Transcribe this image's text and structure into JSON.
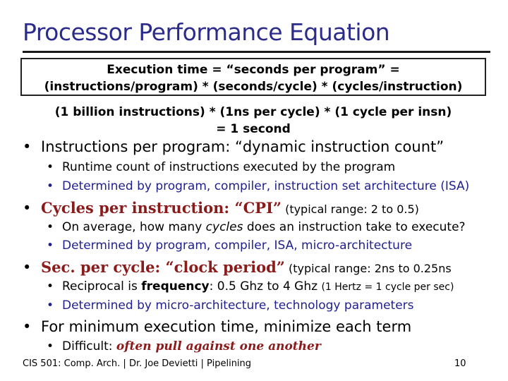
{
  "title": "Processor Performance Equation",
  "equation": {
    "line1": "Execution time = “seconds per program” =",
    "line2": "(instructions/program) * (seconds/cycle) * (cycles/instruction)"
  },
  "example": {
    "line1": "(1 billion instructions) * (1ns per cycle) * (1 cycle per insn)",
    "line2": "= 1 second"
  },
  "bullets": {
    "b1": {
      "text": "Instructions per program: “dynamic instruction count”",
      "sub1": "Runtime count of instructions executed by the program",
      "sub2": "Determined by program, compiler, instruction set architecture (ISA)"
    },
    "b2": {
      "main": "Cycles per instruction: “CPI”",
      "note": " (typical range: 2 to 0.5)",
      "sub1_pre": "On average, how many ",
      "sub1_em": "cycles",
      "sub1_post": " does an instruction take to execute?",
      "sub2": "Determined by program, compiler, ISA, micro-architecture"
    },
    "b3": {
      "main": "Sec. per cycle: “clock period”",
      "note": " (typical range: 2ns to 0.25ns",
      "sub1_pre": "Reciprocal is ",
      "sub1_bold": "frequency",
      "sub1_post": ": 0.5 Ghz to 4 Ghz ",
      "sub1_small": "(1 Hertz = 1 cycle per sec)",
      "sub2": "Determined by micro-architecture, technology parameters"
    },
    "b4": {
      "text": "For minimum execution time, minimize each term",
      "sub1_pre": "Difficult: ",
      "sub1_em": "often pull against one another"
    },
    "bullet_glyph": "•"
  },
  "footer": "CIS 501: Comp. Arch.  |  Dr. Joe Devietti  |  Pipelining",
  "page_number": "10",
  "colors": {
    "title": "#2b2b8c",
    "accent_maroon": "#8b1a1a",
    "sub_navy": "#1f1f8f"
  }
}
